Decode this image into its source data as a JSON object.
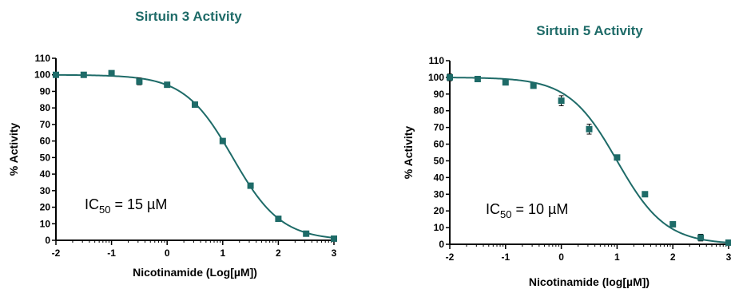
{
  "colors": {
    "series": "#1e6b68",
    "title": "#1e6b68"
  },
  "chart_data": [
    {
      "type": "scatter",
      "title": "Sirtuin 3 Activity",
      "xlabel": "Nicotinamide (Log[µM])",
      "ylabel": "% Activity",
      "annotation": {
        "prefix": "IC",
        "sub": "50",
        "suffix": " = 15 µM"
      },
      "xlim": [
        -2,
        3
      ],
      "ylim": [
        0,
        110
      ],
      "xticks": [
        -2,
        -1,
        0,
        1,
        2,
        3
      ],
      "yticks": [
        0,
        10,
        20,
        30,
        40,
        50,
        60,
        70,
        80,
        90,
        100,
        110
      ],
      "fit": {
        "model": "sigmoidal dose-response",
        "top": 100,
        "bottom": 0,
        "log_ic50": 1.18,
        "hill": -1
      },
      "series": [
        {
          "x": [
            -2,
            -1.5,
            -1,
            -0.5,
            0,
            0.5,
            1,
            1.5,
            2,
            2.5,
            3
          ],
          "y": [
            100,
            100,
            101,
            96,
            94,
            82,
            60,
            33,
            13,
            4,
            1
          ],
          "err": [
            0,
            0,
            0,
            2,
            1,
            1,
            1,
            1,
            1,
            0,
            0
          ]
        }
      ]
    },
    {
      "type": "scatter",
      "title": "Sirtuin 5 Activity",
      "xlabel": "Nicotinamide (log[µM])",
      "ylabel": "% Activity",
      "annotation": {
        "prefix": "IC",
        "sub": "50",
        "suffix": " = 10 µM"
      },
      "xlim": [
        -2,
        3
      ],
      "ylim": [
        0,
        110
      ],
      "xticks": [
        -2,
        -1,
        0,
        1,
        2,
        3
      ],
      "yticks": [
        0,
        10,
        20,
        30,
        40,
        50,
        60,
        70,
        80,
        90,
        100,
        110
      ],
      "fit": {
        "model": "sigmoidal dose-response",
        "top": 100,
        "bottom": 0,
        "log_ic50": 1.0,
        "hill": -1
      },
      "series": [
        {
          "x": [
            -2,
            -1.5,
            -1,
            -0.5,
            0,
            0.5,
            1,
            1.5,
            2,
            2.5,
            3
          ],
          "y": [
            100,
            99,
            97,
            95,
            86,
            69,
            52,
            30,
            12,
            4,
            1
          ],
          "err": [
            2,
            1,
            1,
            1,
            3,
            3,
            1,
            1,
            1,
            2,
            0
          ]
        }
      ]
    }
  ]
}
